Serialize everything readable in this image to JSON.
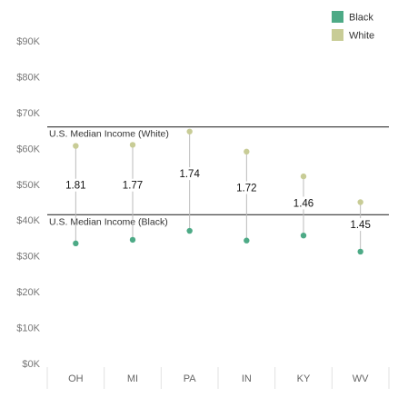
{
  "chart_data": {
    "type": "dot-range",
    "categories": [
      "OH",
      "MI",
      "PA",
      "IN",
      "KY",
      "WV"
    ],
    "series": [
      {
        "name": "Black",
        "color": "#4daa86",
        "values": [
          33500,
          34500,
          37000,
          34300,
          35700,
          31200
        ]
      },
      {
        "name": "White",
        "color": "#c8cc96",
        "values": [
          60700,
          61000,
          64700,
          59100,
          52200,
          45000
        ]
      }
    ],
    "ratio_labels": [
      "1.81",
      "1.77",
      "1.74",
      "1.72",
      "1.46",
      "1.45"
    ],
    "ratio_label_values": [
      49000,
      49000,
      52200,
      48300,
      44000,
      38000
    ],
    "reference_lines": [
      {
        "label": "U.S. Median Income (White)",
        "value": 66000
      },
      {
        "label": "U.S. Median Income (Black)",
        "value": 41500
      }
    ],
    "y_ticks": [
      0,
      10000,
      20000,
      30000,
      40000,
      50000,
      60000,
      70000,
      80000,
      90000
    ],
    "y_tick_labels": [
      "$0K",
      "$10K",
      "$20K",
      "$30K",
      "$40K",
      "$50K",
      "$60K",
      "$70K",
      "$80K",
      "$90K"
    ],
    "ylim": [
      0,
      90000
    ],
    "legend_position": "top-right",
    "grid": false
  }
}
